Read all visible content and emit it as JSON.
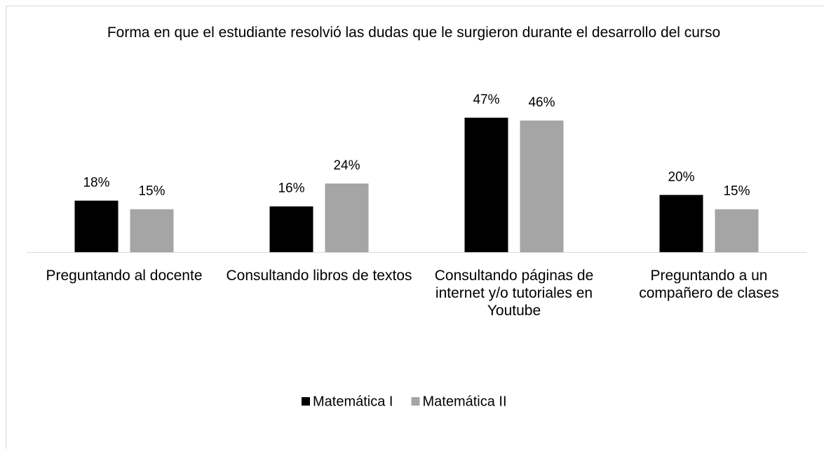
{
  "chart_data": {
    "type": "bar",
    "title": "Forma en que el estudiante resolvió las dudas que le surgieron durante el desarrollo del curso",
    "categories": [
      "Preguntando al docente",
      "Consultando libros de textos",
      "Consultando páginas de internet y/o tutoriales en Youtube",
      "Preguntando a un compañero de clases"
    ],
    "series": [
      {
        "name": "Matemática I",
        "color": "#000000",
        "values": [
          18,
          16,
          47,
          20
        ],
        "value_labels": [
          "18%",
          "16%",
          "47%",
          "20%"
        ]
      },
      {
        "name": "Matemática II",
        "color": "#a5a5a5",
        "values": [
          15,
          24,
          46,
          15
        ],
        "value_labels": [
          "15%",
          "24%",
          "46%",
          "15%"
        ]
      }
    ],
    "legend": "bottom"
  }
}
